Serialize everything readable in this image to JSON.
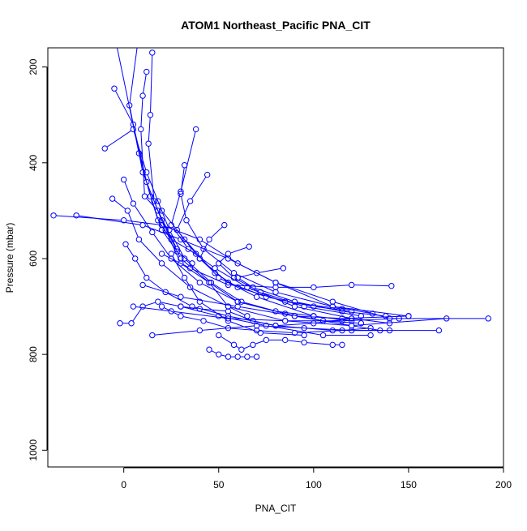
{
  "chart_data": {
    "type": "line",
    "title": "ATOM1 Northeast_Pacific PNA_CIT",
    "xlabel": "PNA_CIT",
    "ylabel": "Pressure (mbar)",
    "xlim": [
      -40,
      200
    ],
    "ylim": [
      1035,
      160
    ],
    "y_reversed": true,
    "x_ticks": [
      0,
      50,
      100,
      150,
      200
    ],
    "x_tick_labels": [
      "0",
      "50",
      "100",
      "150",
      "200"
    ],
    "y_ticks": [
      200,
      400,
      600,
      800,
      1000
    ],
    "y_tick_labels": [
      "200",
      "400",
      "600",
      "800",
      "1000"
    ],
    "grid": false,
    "legend": "none",
    "marker": "open-circle",
    "color": "#0000ff",
    "series": [
      {
        "x": [
          -5,
          5,
          12,
          18,
          25,
          38
        ],
        "y": [
          245,
          320,
          440,
          520,
          560,
          590
        ]
      },
      {
        "x": [
          -4,
          8,
          14,
          20,
          28,
          36
        ],
        "y": [
          150,
          380,
          470,
          540,
          585,
          610
        ]
      },
      {
        "x": [
          8,
          3,
          10,
          20,
          30,
          45,
          60,
          80,
          100
        ],
        "y": [
          130,
          280,
          420,
          520,
          600,
          650,
          690,
          710,
          720
        ]
      },
      {
        "x": [
          12,
          10,
          9,
          11,
          18,
          28
        ],
        "y": [
          210,
          260,
          330,
          470,
          500,
          580
        ]
      },
      {
        "x": [
          15,
          14,
          13,
          16,
          22,
          30,
          45,
          55,
          65
        ],
        "y": [
          170,
          300,
          360,
          480,
          540,
          610,
          650,
          700,
          720
        ]
      },
      {
        "x": [
          -10,
          5,
          12,
          20,
          32,
          50,
          70,
          100,
          120
        ],
        "y": [
          370,
          330,
          420,
          500,
          560,
          640,
          680,
          720,
          730
        ]
      },
      {
        "x": [
          -37,
          0,
          20,
          40,
          60,
          80,
          110,
          140,
          192
        ],
        "y": [
          510,
          520,
          530,
          560,
          610,
          650,
          690,
          725,
          725
        ]
      },
      {
        "x": [
          -25,
          10,
          30,
          55,
          80,
          110,
          150
        ],
        "y": [
          510,
          530,
          560,
          600,
          650,
          700,
          720
        ]
      },
      {
        "x": [
          0,
          5,
          15,
          25,
          40,
          60,
          90,
          120,
          135
        ],
        "y": [
          435,
          485,
          545,
          600,
          650,
          690,
          720,
          740,
          750
        ]
      },
      {
        "x": [
          -6,
          2,
          8,
          20,
          35,
          55,
          85,
          120,
          170
        ],
        "y": [
          475,
          500,
          560,
          610,
          660,
          700,
          730,
          740,
          725
        ]
      },
      {
        "x": [
          1,
          6,
          12,
          22,
          36,
          55,
          80,
          110,
          166
        ],
        "y": [
          570,
          600,
          640,
          670,
          700,
          720,
          740,
          750,
          750
        ]
      },
      {
        "x": [
          -2,
          4,
          10,
          18,
          30,
          50,
          75,
          105,
          130
        ],
        "y": [
          735,
          735,
          700,
          690,
          700,
          720,
          740,
          760,
          760
        ]
      },
      {
        "x": [
          38,
          30,
          25,
          34,
          48,
          65,
          90,
          120,
          140
        ],
        "y": [
          330,
          460,
          530,
          580,
          620,
          660,
          700,
          725,
          735
        ]
      },
      {
        "x": [
          44,
          35,
          28,
          40,
          55,
          75,
          100,
          120
        ],
        "y": [
          425,
          480,
          540,
          600,
          650,
          680,
          700,
          710
        ]
      },
      {
        "x": [
          32,
          30,
          33,
          42,
          58,
          80,
          110,
          131
        ],
        "y": [
          405,
          465,
          520,
          580,
          630,
          670,
          700,
          715
        ]
      },
      {
        "x": [
          53,
          45,
          40,
          48,
          60,
          85,
          115
        ],
        "y": [
          530,
          560,
          600,
          630,
          660,
          690,
          705
        ]
      },
      {
        "x": [
          66,
          55,
          50,
          58,
          72,
          95,
          125
        ],
        "y": [
          575,
          590,
          610,
          640,
          670,
          700,
          720
        ]
      },
      {
        "x": [
          84,
          70,
          60,
          68,
          90,
          115,
          138
        ],
        "y": [
          620,
          630,
          640,
          660,
          690,
          710,
          720
        ]
      },
      {
        "x": [
          20,
          35,
          55,
          80,
          100,
          120,
          141
        ],
        "y": [
          590,
          620,
          655,
          660,
          660,
          655,
          657
        ]
      },
      {
        "x": [
          10,
          30,
          60,
          90,
          115,
          150
        ],
        "y": [
          655,
          680,
          700,
          720,
          725,
          720
        ]
      },
      {
        "x": [
          5,
          25,
          55,
          85,
          115,
          145
        ],
        "y": [
          700,
          710,
          725,
          730,
          730,
          725
        ]
      },
      {
        "x": [
          15,
          40,
          70,
          95,
          120,
          140
        ],
        "y": [
          760,
          750,
          740,
          745,
          750,
          750
        ]
      },
      {
        "x": [
          45,
          50,
          55,
          60,
          65,
          70
        ],
        "y": [
          790,
          800,
          805,
          805,
          805,
          805
        ]
      },
      {
        "x": [
          50,
          58,
          62,
          68,
          75,
          85,
          95,
          110,
          115
        ],
        "y": [
          760,
          780,
          790,
          780,
          770,
          770,
          775,
          780,
          780
        ]
      },
      {
        "x": [
          20,
          30,
          42,
          55,
          70,
          90,
          115,
          130
        ],
        "y": [
          700,
          720,
          730,
          745,
          750,
          755,
          750,
          745
        ]
      },
      {
        "x": [
          25,
          32,
          40,
          55,
          72,
          95
        ],
        "y": [
          590,
          640,
          690,
          730,
          755,
          760
        ]
      },
      {
        "x": [
          30,
          40,
          55,
          68,
          80,
          100,
          120
        ],
        "y": [
          700,
          705,
          710,
          730,
          740,
          735,
          725
        ]
      },
      {
        "x": [
          18,
          24,
          32,
          46,
          62,
          85,
          105,
          125
        ],
        "y": [
          480,
          540,
          600,
          650,
          690,
          715,
          730,
          735
        ]
      }
    ]
  }
}
